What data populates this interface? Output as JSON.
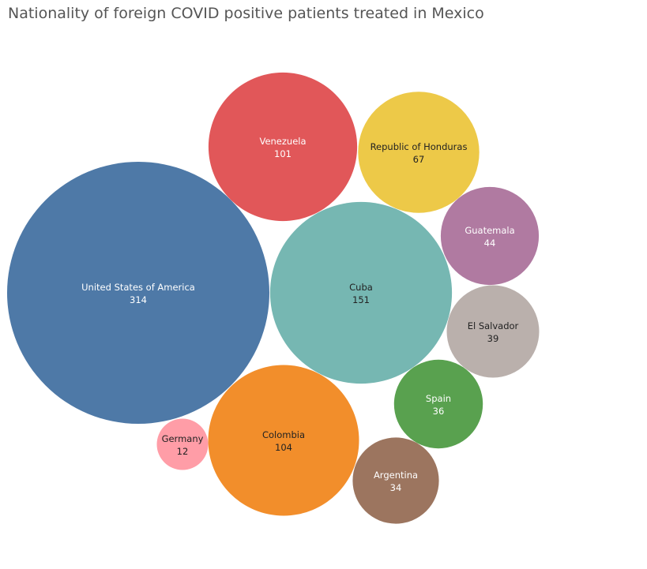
{
  "chart_data": {
    "type": "bubble",
    "title": "Nationality of foreign COVID positive patients treated in Mexico",
    "series": [
      {
        "name": "United States of America",
        "value": 314,
        "color": "#4e79a7",
        "label_color": "#ffffff"
      },
      {
        "name": "Cuba",
        "value": 151,
        "color": "#76b7b2",
        "label_color": "#222222"
      },
      {
        "name": "Colombia",
        "value": 104,
        "color": "#f28e2b",
        "label_color": "#222222"
      },
      {
        "name": "Venezuela",
        "value": 101,
        "color": "#e15759",
        "label_color": "#ffffff"
      },
      {
        "name": "Republic of Honduras",
        "value": 67,
        "color": "#edc948",
        "label_color": "#222222"
      },
      {
        "name": "Guatemala",
        "value": 44,
        "color": "#b07aa1",
        "label_color": "#ffffff"
      },
      {
        "name": "El Salvador",
        "value": 39,
        "color": "#bab0ac",
        "label_color": "#222222"
      },
      {
        "name": "Spain",
        "value": 36,
        "color": "#59a14f",
        "label_color": "#ffffff"
      },
      {
        "name": "Argentina",
        "value": 34,
        "color": "#9c755f",
        "label_color": "#ffffff"
      },
      {
        "name": "Germany",
        "value": 12,
        "color": "#ff9da7",
        "label_color": "#222222"
      }
    ]
  }
}
